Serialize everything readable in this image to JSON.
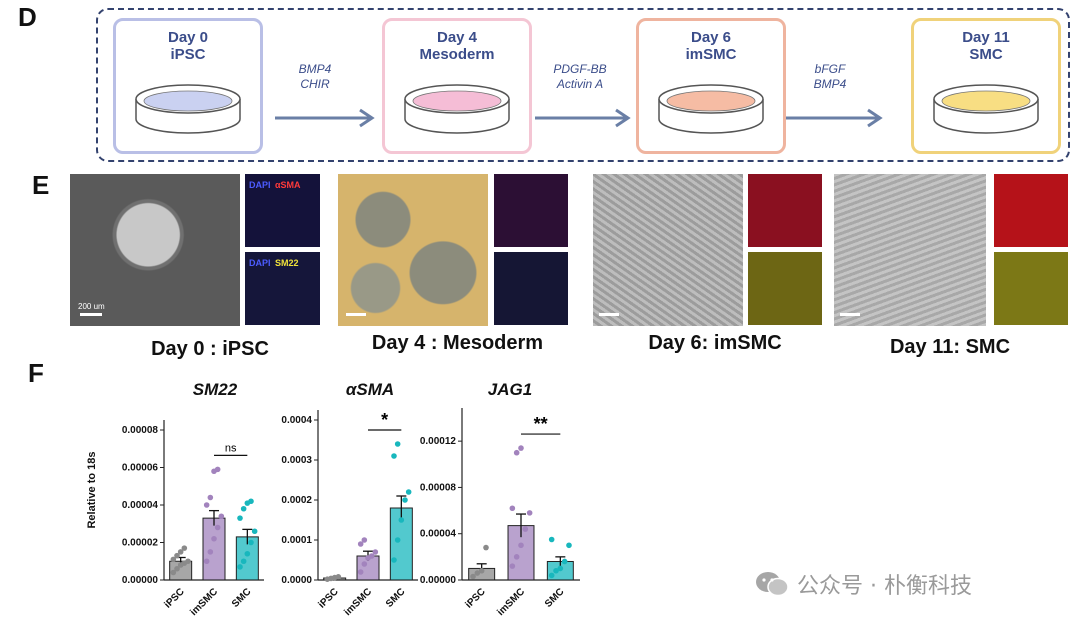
{
  "panels": {
    "d": "D",
    "e": "E",
    "f": "F"
  },
  "stages": [
    {
      "day": "Day 0",
      "name": "iPSC",
      "color": "#b9bfe6",
      "dish": "#b8c1ec"
    },
    {
      "day": "Day 4",
      "name": "Mesoderm",
      "color": "#f4c6d4",
      "dish": "#f2a7c8"
    },
    {
      "day": "Day 6",
      "name": "imSMC",
      "color": "#efb49f",
      "dish": "#f3a585"
    },
    {
      "day": "Day 11",
      "name": "SMC",
      "color": "#f0d27a",
      "dish": "#f6d35a"
    }
  ],
  "factors": [
    [
      "BMP4",
      "CHIR"
    ],
    [
      "PDGF-BB",
      "Activin A"
    ],
    [
      "bFGF",
      "BMP4"
    ]
  ],
  "micrographs": {
    "labels": {
      "dapi1": "DAPI",
      "asma": "αSMA",
      "dapi2": "DAPI",
      "sm22": "SM22",
      "scale": "200 um"
    },
    "captions": [
      "Day 0 :  iPSC",
      "Day 4 : Mesoderm",
      "Day 6: imSMC",
      "Day 11: SMC"
    ]
  },
  "chart_data": [
    {
      "type": "bar",
      "title": "SM22",
      "ylabel": "Relative to 18s",
      "categories": [
        "iPSC",
        "imSMC",
        "SMC"
      ],
      "values": [
        1e-05,
        3.3e-05,
        2.3e-05
      ],
      "errors": [
        2e-06,
        4e-06,
        4e-06
      ],
      "ylim": [
        0,
        8e-05
      ],
      "yticks": [
        "0.00000",
        "0.00002",
        "0.00004",
        "0.00006",
        "0.00008"
      ],
      "yticks_values": [
        0,
        2e-05,
        4e-05,
        6e-05,
        8e-05
      ],
      "colors": [
        "#8a8a8a",
        "#a283bd",
        "#18b7bd"
      ],
      "points": [
        [
          4e-06,
          6e-06,
          8e-06,
          9e-06,
          1e-05,
          1.1e-05,
          1.3e-05,
          1.5e-05,
          1.7e-05
        ],
        [
          1e-05,
          1.5e-05,
          2.2e-05,
          2.8e-05,
          3.4e-05,
          4e-05,
          4.4e-05,
          5.8e-05,
          5.9e-05
        ],
        [
          7e-06,
          1e-05,
          1.4e-05,
          2e-05,
          2.6e-05,
          3.3e-05,
          3.8e-05,
          4.1e-05,
          4.2e-05
        ]
      ],
      "significance": "ns"
    },
    {
      "type": "bar",
      "title": "αSMA",
      "categories": [
        "iPSC",
        "imSMC",
        "SMC"
      ],
      "values": [
        5e-06,
        6e-05,
        0.00018
      ],
      "errors": [
        2e-06,
        1.2e-05,
        3e-05
      ],
      "ylim": [
        0,
        0.0004
      ],
      "yticks": [
        "0.0000",
        "0.0001",
        "0.0002",
        "0.0003",
        "0.0004"
      ],
      "yticks_values": [
        0,
        0.0001,
        0.0002,
        0.0003,
        0.0004
      ],
      "colors": [
        "#8a8a8a",
        "#a283bd",
        "#18b7bd"
      ],
      "points": [
        [
          2e-06,
          4e-06,
          6e-06,
          8e-06
        ],
        [
          2e-05,
          4e-05,
          5.5e-05,
          6e-05,
          7e-05,
          9e-05,
          0.0001
        ],
        [
          5e-05,
          0.0001,
          0.00015,
          0.0002,
          0.00022,
          0.00031,
          0.00034
        ]
      ],
      "significance": "*"
    },
    {
      "type": "bar",
      "title": "JAG1",
      "categories": [
        "iPSC",
        "imSMC",
        "SMC"
      ],
      "values": [
        1e-05,
        4.7e-05,
        1.6e-05
      ],
      "errors": [
        4e-06,
        1e-05,
        4e-06
      ],
      "ylim": [
        0,
        0.00014
      ],
      "yticks": [
        "0.00000",
        "0.00004",
        "0.00008",
        "0.00012"
      ],
      "yticks_values": [
        0,
        4e-05,
        8e-05,
        0.00012
      ],
      "colors": [
        "#8a8a8a",
        "#a283bd",
        "#18b7bd"
      ],
      "points": [
        [
          3e-06,
          6e-06,
          8e-06,
          2.8e-05
        ],
        [
          1.2e-05,
          2e-05,
          3e-05,
          4.4e-05,
          5.8e-05,
          6.2e-05,
          0.00011,
          0.000114
        ],
        [
          4e-06,
          8e-06,
          1e-05,
          1.6e-05,
          3e-05,
          3.5e-05
        ]
      ],
      "significance": "**"
    }
  ],
  "watermark": "公众号 · 朴衡科技"
}
